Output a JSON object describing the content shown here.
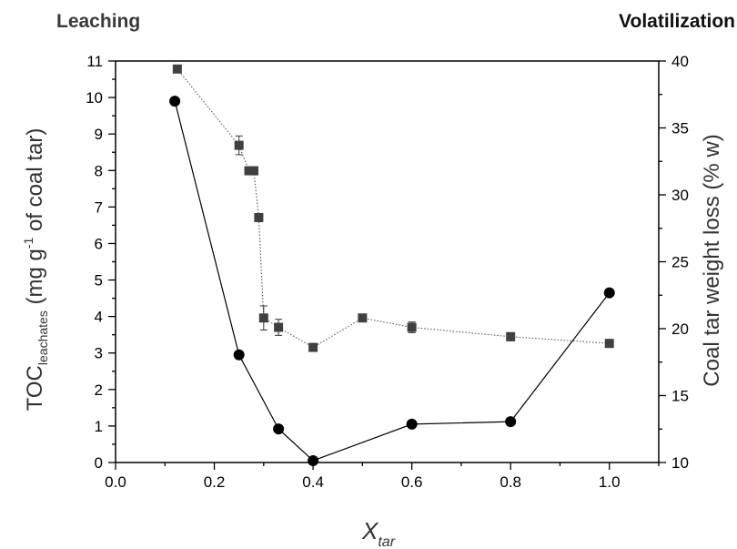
{
  "header": {
    "left_label": "Leaching",
    "right_label": "Volatilization"
  },
  "chart_data": {
    "type": "scatter",
    "xlabel": {
      "main": "X",
      "sub": "tar"
    },
    "ylabel_left": {
      "main": "TOC",
      "sub": "leachates",
      "rest_a": " (mg g",
      "sup": "-1",
      "rest_b": " of coal tar)"
    },
    "ylabel_right": "Coal tar weight loss (% w)",
    "xlim": [
      0.0,
      1.1
    ],
    "ylim_left": [
      0,
      11
    ],
    "ylim_right": [
      10,
      40
    ],
    "x_ticks": [
      "0.0",
      "0.2",
      "0.4",
      "0.6",
      "0.8",
      "1.0"
    ],
    "y_left_ticks": [
      "0",
      "1",
      "2",
      "3",
      "4",
      "5",
      "6",
      "7",
      "8",
      "9",
      "10",
      "11"
    ],
    "y_right_ticks": [
      "10",
      "15",
      "20",
      "25",
      "30",
      "35",
      "40"
    ],
    "grid": false,
    "series": [
      {
        "axis": "left",
        "marker": "circle",
        "line": "solid",
        "color": "#000000",
        "points": [
          {
            "x": 0.12,
            "y": 9.9
          },
          {
            "x": 0.25,
            "y": 2.95
          },
          {
            "x": 0.33,
            "y": 0.92
          },
          {
            "x": 0.4,
            "y": 0.05
          },
          {
            "x": 0.6,
            "y": 1.05
          },
          {
            "x": 0.8,
            "y": 1.12
          },
          {
            "x": 1.0,
            "y": 4.65
          }
        ]
      },
      {
        "axis": "right",
        "marker": "square",
        "line": "dotted",
        "color": "#404040",
        "points": [
          {
            "x": 0.125,
            "y": 39.4,
            "err": 0
          },
          {
            "x": 0.25,
            "y": 33.7,
            "err": 0.7
          },
          {
            "x": 0.27,
            "y": 31.8,
            "err": 0
          },
          {
            "x": 0.28,
            "y": 31.8,
            "err": 0
          },
          {
            "x": 0.29,
            "y": 28.3,
            "err": 0
          },
          {
            "x": 0.3,
            "y": 20.8,
            "err": 0.9
          },
          {
            "x": 0.33,
            "y": 20.1,
            "err": 0.6
          },
          {
            "x": 0.4,
            "y": 18.6,
            "err": 0
          },
          {
            "x": 0.5,
            "y": 20.8,
            "err": 0
          },
          {
            "x": 0.6,
            "y": 20.1,
            "err": 0.4
          },
          {
            "x": 0.8,
            "y": 19.4,
            "err": 0.3
          },
          {
            "x": 1.0,
            "y": 18.9,
            "err": 0
          }
        ]
      }
    ]
  }
}
